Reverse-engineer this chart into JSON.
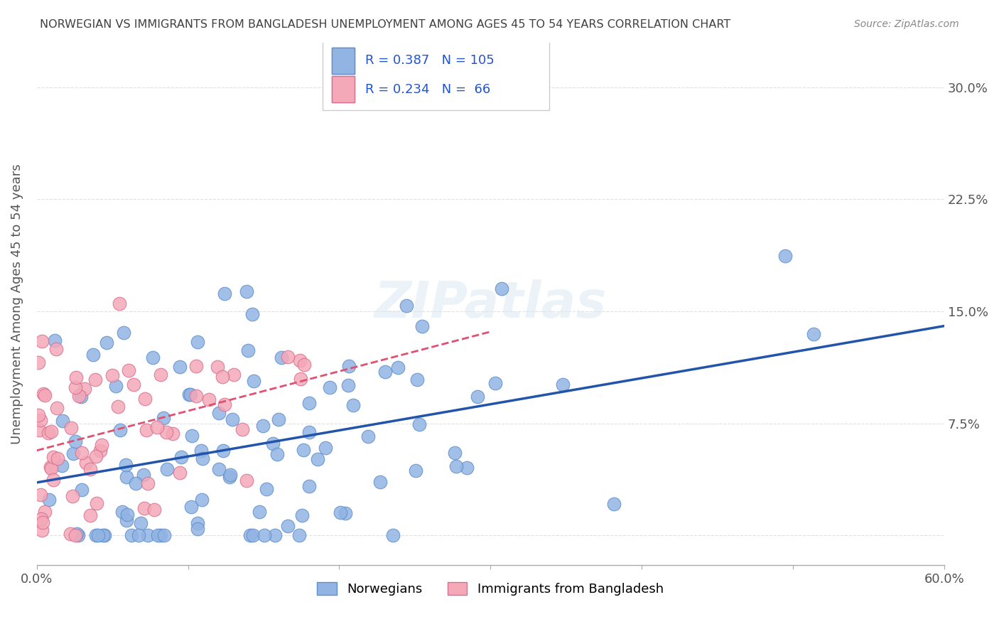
{
  "title": "NORWEGIAN VS IMMIGRANTS FROM BANGLADESH UNEMPLOYMENT AMONG AGES 45 TO 54 YEARS CORRELATION CHART",
  "source": "Source: ZipAtlas.com",
  "xlabel": "",
  "ylabel": "Unemployment Among Ages 45 to 54 years",
  "xlim": [
    0.0,
    0.6
  ],
  "ylim": [
    -0.02,
    0.33
  ],
  "yticks": [
    0.0,
    0.075,
    0.15,
    0.225,
    0.3
  ],
  "ytick_labels": [
    "",
    "7.5%",
    "15.0%",
    "22.5%",
    "30.0%"
  ],
  "xticks": [
    0.0,
    0.1,
    0.2,
    0.3,
    0.4,
    0.5,
    0.6
  ],
  "xtick_labels": [
    "0.0%",
    "",
    "",
    "",
    "",
    "",
    "60.0%"
  ],
  "norwegian_color": "#92b4e3",
  "norwegian_edge": "#6090cc",
  "immigrant_color": "#f4a8b8",
  "immigrant_edge": "#d97090",
  "trend_norwegian_color": "#2255aa",
  "trend_immigrant_color": "#e05070",
  "R_norwegian": 0.387,
  "N_norwegian": 105,
  "R_immigrant": 0.234,
  "N_immigrant": 66,
  "watermark": "ZIPatlas",
  "background_color": "#ffffff",
  "grid_color": "#e0e0e0",
  "title_color": "#404040",
  "legend_label_color": "#2255cc",
  "norwegian_seed": 42,
  "immigrant_seed": 77
}
